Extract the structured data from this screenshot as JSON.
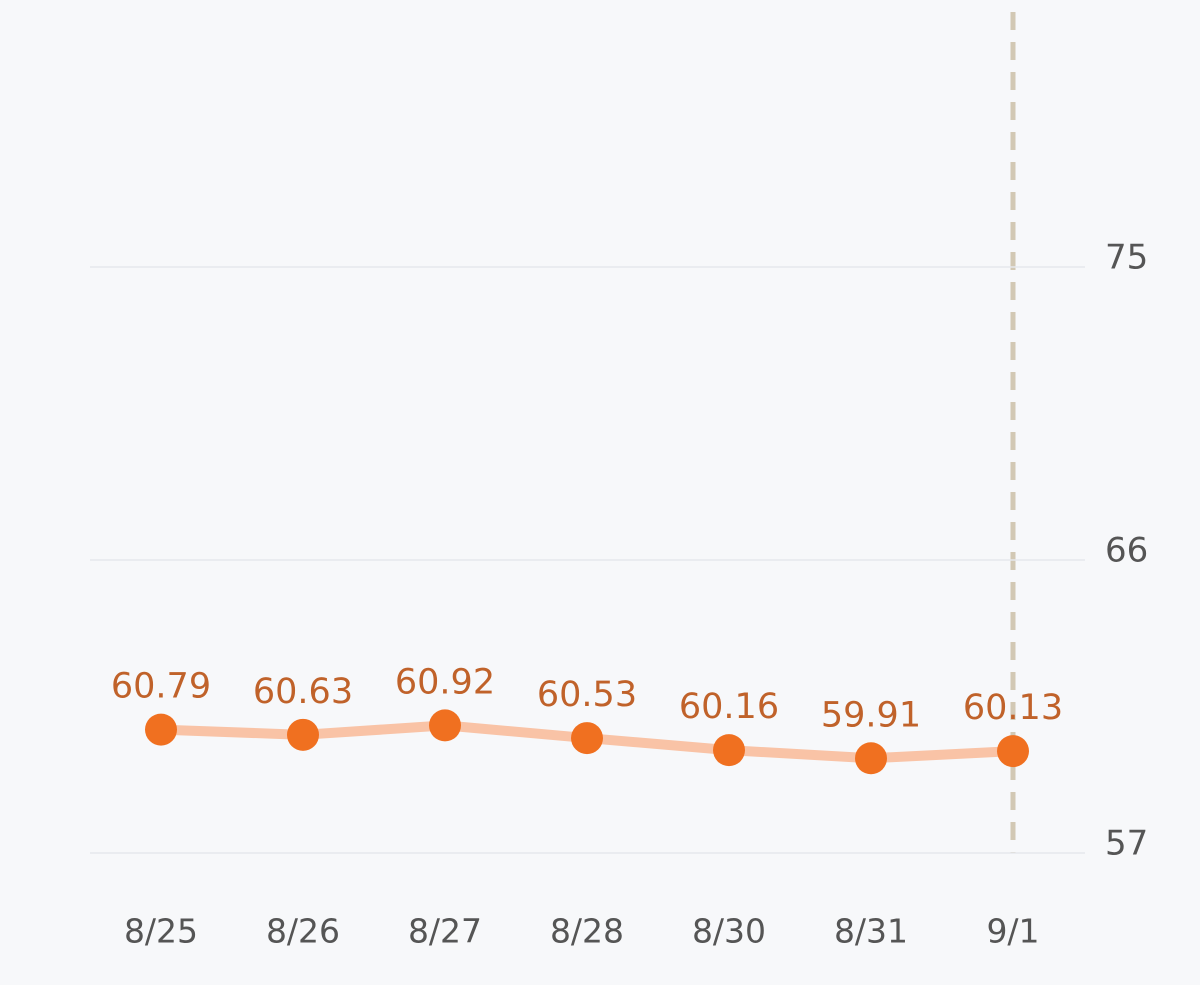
{
  "chart_data": {
    "type": "line",
    "categories": [
      "8/25",
      "8/26",
      "8/27",
      "8/28",
      "8/30",
      "8/31",
      "9/1"
    ],
    "series": [
      {
        "color": "#f07020",
        "values": [
          60.79,
          60.63,
          60.92,
          60.53,
          60.16,
          59.91,
          60.13
        ]
      }
    ],
    "ylim": [
      57,
      75
    ],
    "yticks": [
      57,
      66,
      75
    ],
    "grid": true
  }
}
